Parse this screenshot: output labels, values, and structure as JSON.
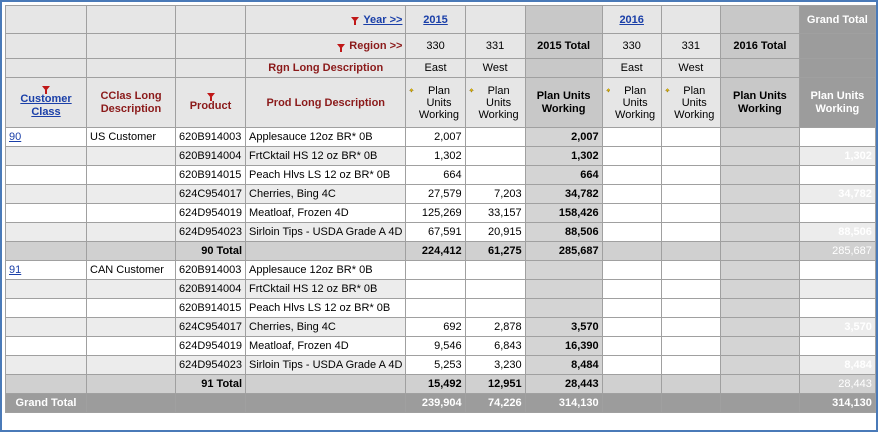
{
  "header": {
    "year_label": "Year >>",
    "region_label": "Region >>",
    "rgn_long_desc": "Rgn Long Description",
    "grand_total_col": "Grand Total",
    "customer_class": "Customer Class",
    "cclas_long": "CClas Long Description",
    "product": "Product",
    "prod_long": "Prod Long Description",
    "years": [
      {
        "year": "2015",
        "regions": [
          {
            "code": "330",
            "desc": "East",
            "measure": "Plan Units Working"
          },
          {
            "code": "331",
            "desc": "West",
            "measure": "Plan Units Working"
          }
        ],
        "total_label": "2015 Total",
        "total_measure": "Plan Units Working"
      },
      {
        "year": "2016",
        "regions": [
          {
            "code": "330",
            "desc": "East",
            "measure": "Plan Units Working"
          },
          {
            "code": "331",
            "desc": "West",
            "measure": "Plan Units Working"
          }
        ],
        "total_label": "2016 Total",
        "total_measure": "Plan Units Working"
      }
    ],
    "grand_measure": "Plan Units Working"
  },
  "groups": [
    {
      "class_code": "90",
      "class_desc": "US Customer",
      "rows": [
        {
          "product": "620B914003",
          "desc": "Applesauce 12oz BR* 0B",
          "e15": "2,007",
          "w15": "",
          "t15": "2,007",
          "e16": "",
          "w16": "",
          "t16": "",
          "gt": "2,007"
        },
        {
          "product": "620B914004",
          "desc": "FrtCktail HS 12 oz BR* 0B",
          "e15": "1,302",
          "w15": "",
          "t15": "1,302",
          "e16": "",
          "w16": "",
          "t16": "",
          "gt": "1,302"
        },
        {
          "product": "620B914015",
          "desc": "Peach Hlvs LS 12 oz BR* 0B",
          "e15": "664",
          "w15": "",
          "t15": "664",
          "e16": "",
          "w16": "",
          "t16": "",
          "gt": "664"
        },
        {
          "product": "624C954017",
          "desc": "Cherries, Bing 4C",
          "e15": "27,579",
          "w15": "7,203",
          "t15": "34,782",
          "e16": "",
          "w16": "",
          "t16": "",
          "gt": "34,782"
        },
        {
          "product": "624D954019",
          "desc": "Meatloaf, Frozen 4D",
          "e15": "125,269",
          "w15": "33,157",
          "t15": "158,426",
          "e16": "",
          "w16": "",
          "t16": "",
          "gt": "158,426"
        },
        {
          "product": "624D954023",
          "desc": "Sirloin Tips - USDA Grade A 4D",
          "e15": "67,591",
          "w15": "20,915",
          "t15": "88,506",
          "e16": "",
          "w16": "",
          "t16": "",
          "gt": "88,506"
        }
      ],
      "total": {
        "label": "90 Total",
        "e15": "224,412",
        "w15": "61,275",
        "t15": "285,687",
        "e16": "",
        "w16": "",
        "t16": "",
        "gt": "285,687"
      }
    },
    {
      "class_code": "91",
      "class_desc": "CAN Customer",
      "rows": [
        {
          "product": "620B914003",
          "desc": "Applesauce 12oz BR* 0B",
          "e15": "",
          "w15": "",
          "t15": "",
          "e16": "",
          "w16": "",
          "t16": "",
          "gt": ""
        },
        {
          "product": "620B914004",
          "desc": "FrtCktail HS 12 oz BR* 0B",
          "e15": "",
          "w15": "",
          "t15": "",
          "e16": "",
          "w16": "",
          "t16": "",
          "gt": ""
        },
        {
          "product": "620B914015",
          "desc": "Peach Hlvs LS 12 oz BR* 0B",
          "e15": "",
          "w15": "",
          "t15": "",
          "e16": "",
          "w16": "",
          "t16": "",
          "gt": ""
        },
        {
          "product": "624C954017",
          "desc": "Cherries, Bing 4C",
          "e15": "692",
          "w15": "2,878",
          "t15": "3,570",
          "e16": "",
          "w16": "",
          "t16": "",
          "gt": "3,570"
        },
        {
          "product": "624D954019",
          "desc": "Meatloaf, Frozen 4D",
          "e15": "9,546",
          "w15": "6,843",
          "t15": "16,390",
          "e16": "",
          "w16": "",
          "t16": "",
          "gt": "16,390"
        },
        {
          "product": "624D954023",
          "desc": "Sirloin Tips - USDA Grade A 4D",
          "e15": "5,253",
          "w15": "3,230",
          "t15": "8,484",
          "e16": "",
          "w16": "",
          "t16": "",
          "gt": "8,484"
        }
      ],
      "total": {
        "label": "91 Total",
        "e15": "15,492",
        "w15": "12,951",
        "t15": "28,443",
        "e16": "",
        "w16": "",
        "t16": "",
        "gt": "28,443"
      }
    }
  ],
  "grand_total": {
    "label": "Grand Total",
    "e15": "239,904",
    "w15": "74,226",
    "t15": "314,130",
    "e16": "",
    "w16": "",
    "t16": "",
    "gt": "314,130"
  },
  "colors": {
    "frame": "#4a7ab8",
    "grand_total_bg": "#9c9c9c",
    "maroon": "#8b1a1a",
    "link": "#1a3fa8",
    "filter": "#c01818"
  },
  "icons": {
    "filter": "filter-icon",
    "toggle": "measure-toggle-icon"
  }
}
